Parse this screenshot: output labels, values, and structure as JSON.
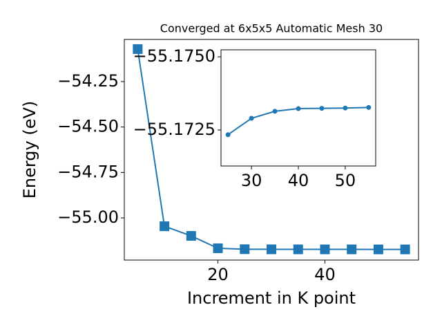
{
  "chart_data": [
    {
      "type": "line",
      "marker": "square",
      "title": "Converged at 6x5x5 Automatic Mesh 30",
      "x_label": "Increment in K point",
      "y_label": "Energy (eV)",
      "x": [
        5,
        10,
        15,
        20,
        25,
        30,
        35,
        40,
        45,
        50,
        55
      ],
      "series": [
        {
          "color": "#1f77b4",
          "values": [
            -54.071,
            -55.046,
            -55.099,
            -55.167,
            -55.1723,
            -55.1729,
            -55.1731,
            -55.1732,
            -55.1732,
            -55.1733,
            -55.1733
          ]
        }
      ],
      "xlim": [
        2.5,
        57.5
      ],
      "ylim": [
        -55.232,
        -54.018
      ],
      "xticks": [
        20,
        40
      ],
      "yticks": [
        {
          "value": -55.0,
          "label": "−55.00"
        },
        {
          "value": -54.75,
          "label": "−54.75"
        },
        {
          "value": -54.5,
          "label": "−54.50"
        },
        {
          "value": -54.25,
          "label": "−54.25"
        }
      ]
    },
    {
      "type": "line",
      "marker": "circle",
      "x": [
        25,
        30,
        35,
        40,
        45,
        50,
        55
      ],
      "series": [
        {
          "color": "#1f77b4",
          "values": [
            -55.17234,
            -55.1729,
            -55.17314,
            -55.17323,
            -55.17324,
            -55.17325,
            -55.17327
          ]
        }
      ],
      "xlim": [
        23.5,
        56.5
      ],
      "ylim": [
        -55.17127,
        -55.17524
      ],
      "xticks": [
        30,
        40,
        50
      ],
      "yticks": [
        {
          "value": -55.1725,
          "label": "−55.1725"
        },
        {
          "value": -55.175,
          "label": "−55.1750"
        }
      ]
    }
  ]
}
